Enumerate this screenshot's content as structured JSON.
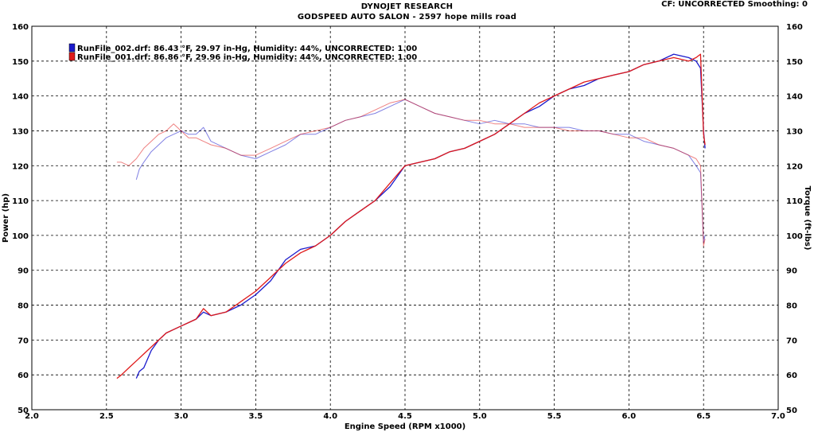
{
  "header": {
    "title": "DYNOJET RESEARCH",
    "subtitle": "GODSPEED AUTO SALON - 2597 hope mills road",
    "correction": "CF: UNCORRECTED  Smoothing: 0"
  },
  "chart_data": {
    "type": "line",
    "xlabel": "Engine Speed (RPM x1000)",
    "ylabel_left": "Power (hp)",
    "ylabel_right": "Torque (ft-lbs)",
    "xlim": [
      2.0,
      7.0
    ],
    "ylim": [
      50,
      160
    ],
    "x_ticks": [
      "2.0",
      "2.5",
      "3.0",
      "3.5",
      "4.0",
      "4.5",
      "5.0",
      "5.5",
      "6.0",
      "6.5",
      "7.0"
    ],
    "y_ticks_left": [
      "50",
      "60",
      "70",
      "80",
      "90",
      "100",
      "110",
      "120",
      "130",
      "140",
      "150",
      "160"
    ],
    "y_ticks_right": [
      "50",
      "60",
      "70",
      "80",
      "90",
      "100",
      "110",
      "120",
      "130",
      "140",
      "150",
      "160"
    ],
    "grid": true,
    "legend_placement": "top-left",
    "series": [
      {
        "name": "RunFile_002.drf: 86.43 °F, 29.97 in-Hg, Humidity: 44%, UNCORRECTED: 1.00",
        "color": "#1a1acc",
        "power": {
          "x": [
            2.7,
            2.72,
            2.75,
            2.8,
            2.85,
            2.9,
            2.95,
            3.0,
            3.05,
            3.1,
            3.15,
            3.2,
            3.3,
            3.4,
            3.5,
            3.6,
            3.7,
            3.8,
            3.9,
            4.0,
            4.1,
            4.2,
            4.3,
            4.4,
            4.5,
            4.6,
            4.7,
            4.8,
            4.9,
            5.0,
            5.1,
            5.2,
            5.3,
            5.4,
            5.5,
            5.6,
            5.7,
            5.8,
            5.9,
            6.0,
            6.1,
            6.2,
            6.3,
            6.4,
            6.45,
            6.48,
            6.5,
            6.51
          ],
          "y": [
            59,
            61,
            62,
            67,
            70,
            72,
            73,
            74,
            75,
            76,
            78,
            77,
            78,
            80,
            83,
            87,
            93,
            96,
            97,
            100,
            104,
            107,
            110,
            114,
            120,
            121,
            122,
            124,
            125,
            127,
            129,
            132,
            135,
            137,
            140,
            142,
            143,
            145,
            146,
            147,
            149,
            150,
            152,
            151,
            150,
            148,
            130,
            125
          ]
        },
        "torque": {
          "x": [
            2.7,
            2.72,
            2.75,
            2.8,
            2.85,
            2.9,
            2.95,
            3.0,
            3.05,
            3.1,
            3.15,
            3.2,
            3.3,
            3.4,
            3.5,
            3.6,
            3.7,
            3.8,
            3.9,
            4.0,
            4.1,
            4.2,
            4.3,
            4.4,
            4.5,
            4.6,
            4.7,
            4.8,
            4.9,
            5.0,
            5.1,
            5.2,
            5.3,
            5.4,
            5.5,
            5.6,
            5.7,
            5.8,
            5.9,
            6.0,
            6.1,
            6.2,
            6.3,
            6.4,
            6.45,
            6.48,
            6.5,
            6.51
          ],
          "y": [
            116,
            119,
            121,
            124,
            126,
            128,
            129,
            130,
            129,
            129,
            131,
            127,
            125,
            123,
            122,
            124,
            126,
            129,
            129,
            131,
            133,
            134,
            135,
            137,
            139,
            137,
            135,
            134,
            133,
            132,
            133,
            132,
            132,
            131,
            131,
            131,
            130,
            130,
            129,
            129,
            127,
            126,
            125,
            123,
            120,
            118,
            98,
            100
          ]
        }
      },
      {
        "name": "RunFile_001.drf: 86.86 °F, 29.96 in-Hg, Humidity: 44%, UNCORRECTED: 1.00",
        "color": "#e01a1a",
        "power": {
          "x": [
            2.57,
            2.6,
            2.65,
            2.7,
            2.75,
            2.8,
            2.85,
            2.9,
            2.95,
            3.0,
            3.05,
            3.1,
            3.15,
            3.2,
            3.3,
            3.4,
            3.5,
            3.6,
            3.7,
            3.8,
            3.9,
            4.0,
            4.1,
            4.2,
            4.3,
            4.4,
            4.5,
            4.6,
            4.7,
            4.8,
            4.9,
            5.0,
            5.1,
            5.2,
            5.3,
            5.4,
            5.5,
            5.6,
            5.7,
            5.8,
            5.9,
            6.0,
            6.1,
            6.2,
            6.3,
            6.4,
            6.45,
            6.48,
            6.5,
            6.51
          ],
          "y": [
            59,
            60,
            62,
            64,
            66,
            68,
            70,
            72,
            73,
            74,
            75,
            76,
            79,
            77,
            78,
            81,
            84,
            88,
            92,
            95,
            97,
            100,
            104,
            107,
            110,
            115,
            120,
            121,
            122,
            124,
            125,
            127,
            129,
            132,
            135,
            138,
            140,
            142,
            144,
            145,
            146,
            147,
            149,
            150,
            151,
            150,
            151,
            152,
            129,
            126
          ]
        },
        "torque": {
          "x": [
            2.57,
            2.6,
            2.65,
            2.7,
            2.75,
            2.8,
            2.85,
            2.9,
            2.95,
            3.0,
            3.05,
            3.1,
            3.15,
            3.2,
            3.3,
            3.4,
            3.5,
            3.6,
            3.7,
            3.8,
            3.9,
            4.0,
            4.1,
            4.2,
            4.3,
            4.4,
            4.5,
            4.6,
            4.7,
            4.8,
            4.9,
            5.0,
            5.1,
            5.2,
            5.3,
            5.4,
            5.5,
            5.6,
            5.7,
            5.8,
            5.9,
            6.0,
            6.1,
            6.2,
            6.3,
            6.4,
            6.45,
            6.48,
            6.5,
            6.51
          ],
          "y": [
            121,
            121,
            120,
            122,
            125,
            127,
            129,
            130,
            132,
            130,
            128,
            128,
            127,
            126,
            125,
            123,
            123,
            125,
            127,
            129,
            130,
            131,
            133,
            134,
            136,
            138,
            139,
            137,
            135,
            134,
            133,
            133,
            132,
            132,
            131,
            131,
            131,
            130,
            130,
            130,
            129,
            128,
            128,
            126,
            125,
            123,
            122,
            120,
            97,
            99
          ]
        }
      }
    ]
  }
}
